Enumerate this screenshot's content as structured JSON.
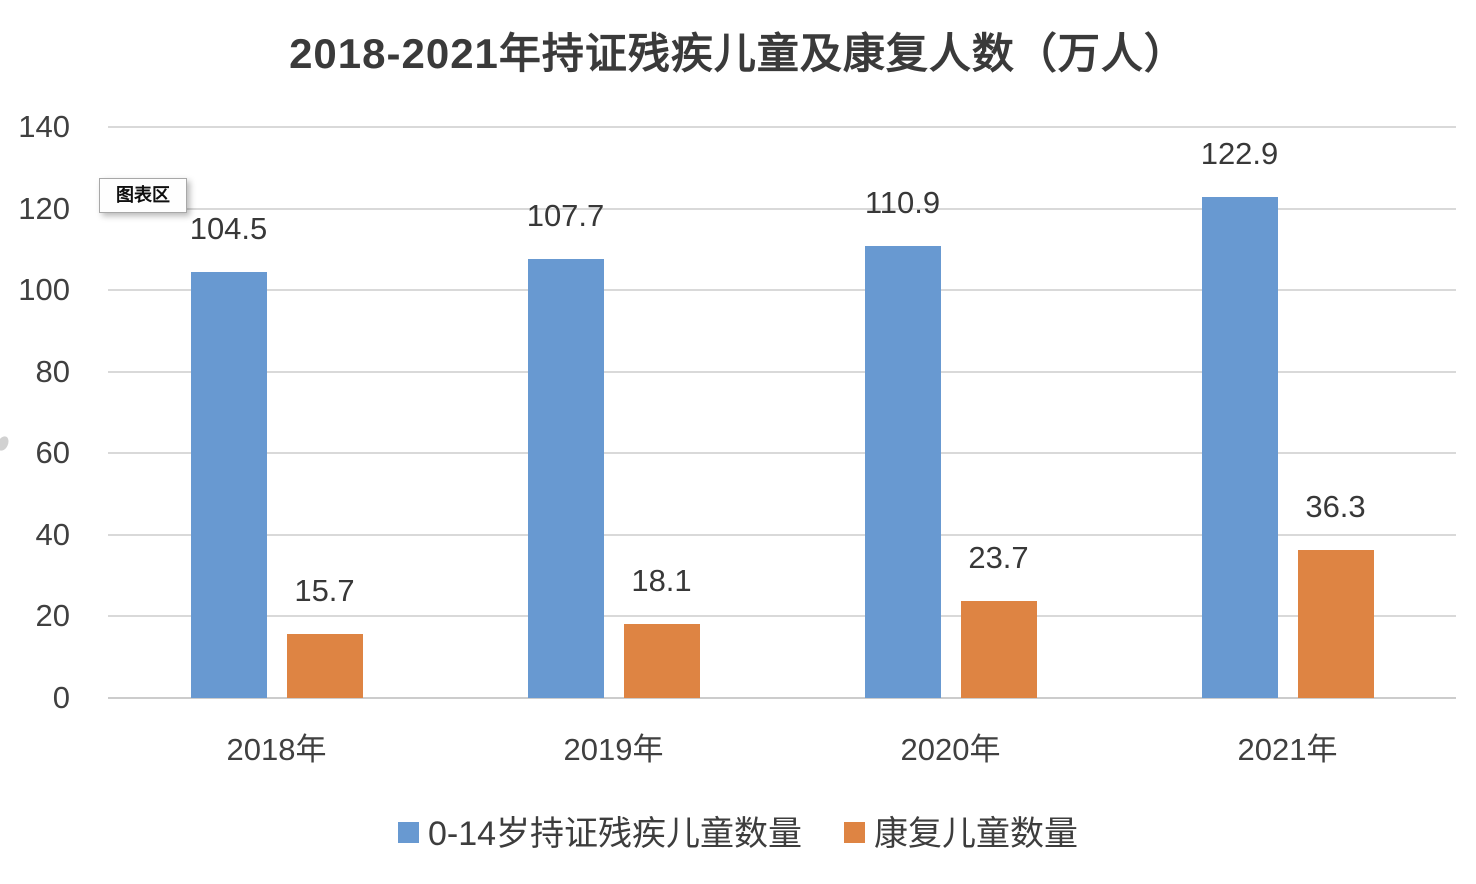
{
  "chart_data": {
    "type": "bar",
    "title": "2018-2021年持证残疾儿童及康复人数（万人）",
    "categories": [
      "2018年",
      "2019年",
      "2020年",
      "2021年"
    ],
    "series": [
      {
        "name": "0-14岁持证残疾儿童数量",
        "color": "#6899d1",
        "values": [
          104.5,
          107.7,
          110.9,
          122.9
        ]
      },
      {
        "name": "康复儿童数量",
        "color": "#de8443",
        "values": [
          15.7,
          18.1,
          23.7,
          36.3
        ]
      }
    ],
    "ylim": [
      0,
      140
    ],
    "yticks": [
      0,
      20,
      40,
      60,
      80,
      100,
      120,
      140
    ],
    "xlabel": "",
    "ylabel": "",
    "grid": true,
    "legend_position": "bottom",
    "data_labels": true
  },
  "tooltip": {
    "label": "图表区"
  },
  "colors": {
    "grid": "#d9d9d9",
    "axis_line": "#cccccc",
    "tick_text": "#404040",
    "title_text": "#3a3a3a",
    "data_label_text": "#383838"
  }
}
